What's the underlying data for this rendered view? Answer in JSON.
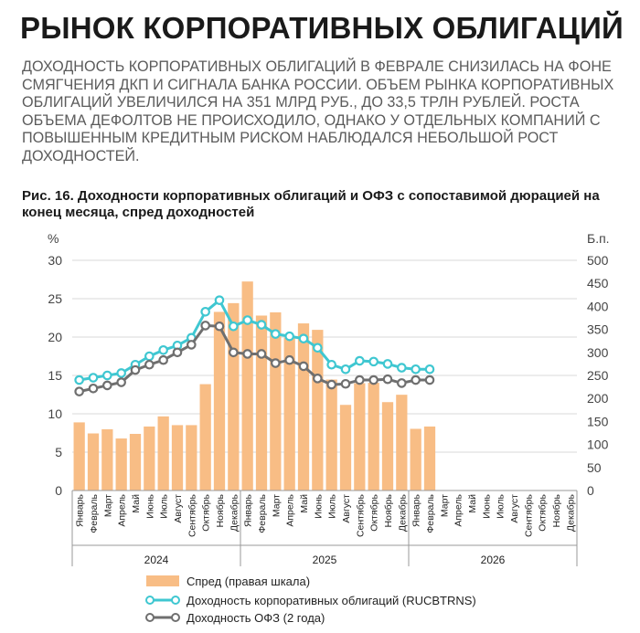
{
  "header": {
    "title": "РЫНОК КОРПОРАТИВНЫХ ОБЛИГАЦИЙ",
    "lead": "ДОХОДНОСТЬ КОРПОРАТИВНЫХ ОБЛИГАЦИЙ В ФЕВРАЛЕ СНИЗИЛАСЬ НА ФОНЕ СМЯГЧЕНИЯ ДКП И СИГНАЛА БАНКА РОССИИ. ОБЪЕМ РЫНКА КОРПОРАТИВНЫХ ОБЛИГАЦИЙ УВЕЛИЧИЛСЯ НА 351 МЛРД РУБ., ДО 33,5 ТРЛН РУБЛЕЙ. РОСТА ОБЪЕМА ДЕФОЛТОВ НЕ ПРОИСХОДИЛО, ОДНАКО У ОТДЕЛЬНЫХ КОМПАНИЙ С ПОВЫШЕННЫМ КРЕДИТНЫМ РИСКОМ НАБЛЮДАЛСЯ НЕБОЛЬШОЙ РОСТ ДОХОДНОСТЕЙ.",
    "figure_title": "Рис. 16. Доходности корпоративных облигаций и ОФЗ с сопоставимой дюрацией на конец месяца, спред доходностей"
  },
  "colors": {
    "spread": "#f8bd85",
    "corporate": "#3fc7d1",
    "ofz": "#6f6f6f",
    "axis": "#9a9a9a",
    "grid": "#d9d9d9"
  },
  "chart_data": {
    "type": "bar+line",
    "left_axis": {
      "label": "%",
      "range": [
        0,
        30
      ],
      "ticks": [
        0,
        5,
        10,
        15,
        20,
        25,
        30
      ]
    },
    "right_axis": {
      "label": "Б.п.",
      "range": [
        0,
        500
      ],
      "ticks": [
        0,
        50,
        100,
        150,
        200,
        250,
        300,
        350,
        400,
        450,
        500
      ]
    },
    "months": [
      "Январь",
      "Февраль",
      "Март",
      "Апрель",
      "Май",
      "Июнь",
      "Июль",
      "Август",
      "Сентябрь",
      "Октябрь",
      "Ноябрь",
      "Декабрь"
    ],
    "years": [
      "2024",
      "2025",
      "2026"
    ],
    "series": [
      {
        "name": "Спред (правая шкала)",
        "kind": "bar",
        "axis": "right",
        "color_key": "spread",
        "values": [
          148,
          124,
          133,
          113,
          123,
          139,
          161,
          142,
          142,
          231,
          388,
          407,
          454,
          380,
          387,
          332,
          363,
          349,
          241,
          186,
          233,
          234,
          192,
          208,
          134,
          139,
          null,
          null,
          null,
          null,
          null,
          null,
          null,
          null,
          null,
          null
        ]
      },
      {
        "name": "Доходность корпоративных облигаций (RUCBTRNS)",
        "kind": "line",
        "axis": "left",
        "color_key": "corporate",
        "values": [
          14.4,
          14.7,
          15.0,
          15.3,
          16.4,
          17.5,
          18.3,
          18.9,
          19.9,
          23.3,
          24.8,
          21.4,
          22.2,
          21.6,
          20.4,
          20.1,
          19.8,
          18.6,
          16.4,
          15.8,
          16.9,
          16.8,
          16.5,
          16.0,
          15.8,
          15.8,
          null,
          null,
          null,
          null,
          null,
          null,
          null,
          null,
          null,
          null
        ]
      },
      {
        "name": "Доходность ОФЗ (2 года)",
        "kind": "line",
        "axis": "left",
        "color_key": "ofz",
        "values": [
          12.9,
          13.3,
          13.7,
          14.1,
          15.7,
          16.4,
          17.0,
          18.0,
          19.0,
          21.5,
          21.4,
          18.0,
          17.8,
          17.8,
          16.6,
          17.0,
          16.2,
          14.6,
          13.8,
          13.9,
          14.4,
          14.4,
          14.5,
          14.0,
          14.4,
          14.4,
          null,
          null,
          null,
          null,
          null,
          null,
          null,
          null,
          null,
          null
        ]
      }
    ]
  },
  "legend": {
    "spread": "Спред (правая шкала)",
    "corporate": "Доходность корпоративных облигаций (RUCBTRNS)",
    "ofz": "Доходность ОФЗ (2 года)"
  }
}
